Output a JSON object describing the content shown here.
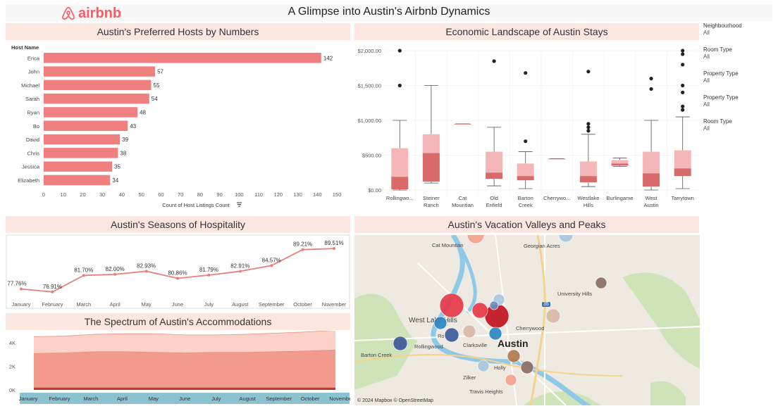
{
  "brand": {
    "name": "airbnb",
    "color": "#ff5a5f"
  },
  "dashboard_title": "A Glimpse into Austin's Airbnb Dynamics",
  "filters": [
    {
      "label": "Neighbourhood",
      "value": "All"
    },
    {
      "label": "Room Type",
      "value": "All"
    },
    {
      "label": "Property Type",
      "value": "All"
    },
    {
      "label": "Property Type",
      "value": "All"
    },
    {
      "label": "Room Type",
      "value": "All"
    }
  ],
  "chart_data": [
    {
      "id": "hosts",
      "type": "bar",
      "orientation": "horizontal",
      "title": "Austin's Preferred Hosts by Numbers",
      "ylabel": "Host Name",
      "xlabel": "Count of Host Listings Count",
      "categories": [
        "Erica",
        "John",
        "Michael",
        "Sarah",
        "Ryan",
        "Bo",
        "David",
        "Chris",
        "Jessica",
        "Elizabeth"
      ],
      "values": [
        142,
        57,
        55,
        54,
        48,
        43,
        39,
        38,
        35,
        34
      ],
      "xlim": [
        0,
        150
      ],
      "xticks": [
        0,
        10,
        20,
        30,
        40,
        50,
        60,
        70,
        80,
        90,
        100,
        110,
        120,
        130,
        140,
        150
      ],
      "color": "#f08080"
    },
    {
      "id": "prices",
      "type": "box",
      "title": "Economic Landscape of Austin Stays",
      "ylim": [
        0,
        2000
      ],
      "yticks": [
        {
          "v": 0,
          "label": "$0.00"
        },
        {
          "v": 500,
          "label": "$500.00"
        },
        {
          "v": 1000,
          "label": "$1,000.00"
        },
        {
          "v": 1500,
          "label": "$1,500.00"
        },
        {
          "v": 2000,
          "label": "$2,000.00"
        }
      ],
      "categories": [
        {
          "label": "Rollingwo...",
          "min": 0,
          "q1": 10,
          "median": 190,
          "q3": 600,
          "max": 1000,
          "outliers": [
            1500,
            2000
          ]
        },
        {
          "label": "Steiner Ranch",
          "min": 100,
          "q1": 120,
          "median": 530,
          "q3": 800,
          "max": 1500,
          "outliers": []
        },
        {
          "label": "Cat Mountian",
          "min": 950,
          "q1": 950,
          "median": 950,
          "q3": 950,
          "max": 950,
          "outliers": []
        },
        {
          "label": "Old Enfield",
          "min": 60,
          "q1": 160,
          "median": 250,
          "q3": 550,
          "max": 900,
          "outliers": [
            1850
          ]
        },
        {
          "label": "Barton Creek",
          "min": 20,
          "q1": 140,
          "median": 200,
          "q3": 380,
          "max": 550,
          "outliers": [
            700,
            1680
          ]
        },
        {
          "label": "Cherrywo...",
          "min": 450,
          "q1": 450,
          "median": 450,
          "q3": 450,
          "max": 450,
          "outliers": []
        },
        {
          "label": "Westlake Hills",
          "min": 50,
          "q1": 110,
          "median": 200,
          "q3": 410,
          "max": 800,
          "outliers": [
            850,
            900,
            950,
            1700
          ]
        },
        {
          "label": "Burlingame",
          "min": 340,
          "q1": 350,
          "median": 380,
          "q3": 430,
          "max": 460,
          "outliers": []
        },
        {
          "label": "West Austin",
          "min": 0,
          "q1": 50,
          "median": 240,
          "q3": 550,
          "max": 1000,
          "outliers": [
            1450,
            1600
          ]
        },
        {
          "label": "Tarrytown",
          "min": 20,
          "q1": 200,
          "median": 310,
          "q3": 570,
          "max": 1050,
          "outliers": [
            1150,
            1200,
            1400,
            1500,
            1800,
            1950,
            2000
          ]
        }
      ],
      "box_color": "#f4b6b6",
      "median_color": "#d96a6a"
    },
    {
      "id": "occupancy",
      "type": "line",
      "title": "Austin's Seasons of Hospitality",
      "categories": [
        "January",
        "February",
        "March",
        "April",
        "May",
        "June",
        "July",
        "August",
        "September",
        "October",
        "November"
      ],
      "values": [
        77.76,
        76.91,
        81.7,
        82.0,
        82.93,
        80.86,
        81.79,
        82.91,
        84.57,
        89.21,
        89.51
      ],
      "labels": [
        "77.76%",
        "76.91%",
        "81.70%",
        "82.00%",
        "82.93%",
        "80.86%",
        "81.79%",
        "82.91%",
        "84.57%",
        "89.21%",
        "89.51%"
      ],
      "ylim": [
        74,
        92
      ],
      "color": "#e8817c"
    },
    {
      "id": "accommodations",
      "type": "area",
      "stacked": true,
      "title": "The Spectrum of Austin's Accommodations",
      "categories": [
        "January",
        "February",
        "March",
        "April",
        "May",
        "June",
        "July",
        "August",
        "September",
        "October",
        "November"
      ],
      "yticks": [
        {
          "v": 0,
          "label": "0K"
        },
        {
          "v": 2000,
          "label": "2K"
        },
        {
          "v": 4000,
          "label": "4K"
        }
      ],
      "ylim": [
        0,
        5000
      ],
      "series": [
        {
          "values": [
            200,
            200,
            200,
            200,
            200,
            200,
            200,
            200,
            200,
            200,
            200
          ],
          "color": "#c0392b"
        },
        {
          "values": [
            2900,
            2950,
            3050,
            3050,
            3000,
            2950,
            3000,
            3000,
            3050,
            3100,
            3200
          ],
          "color": "#f29a8e"
        },
        {
          "values": [
            1400,
            1400,
            1450,
            1500,
            1550,
            1500,
            1450,
            1500,
            1550,
            1600,
            1650
          ],
          "color": "#fbd1c8"
        }
      ]
    }
  ],
  "map": {
    "title": "Austin's Vacation Valleys and Peaks",
    "copyright": "© 2024 Mapbox © OpenStreetMap",
    "city_label": "Austin",
    "labels": [
      "Cat Mountian",
      "Georgian Acres",
      "University Hills",
      "West Lake Hills",
      "Rollingwood",
      "Barton Creek",
      "Clarksville",
      "Cherrywood",
      "Holly",
      "Zilker",
      "Travis Heights",
      "Ro"
    ],
    "highway": "35",
    "bubble_colors": [
      "#e63946",
      "#c1121f",
      "#457b9d",
      "#a8c5e0",
      "#6c8ebf",
      "#d9b8a6",
      "#8d6e63",
      "#b07a4a",
      "#f4a28c",
      "#2e86c1",
      "#3c5a99"
    ]
  }
}
